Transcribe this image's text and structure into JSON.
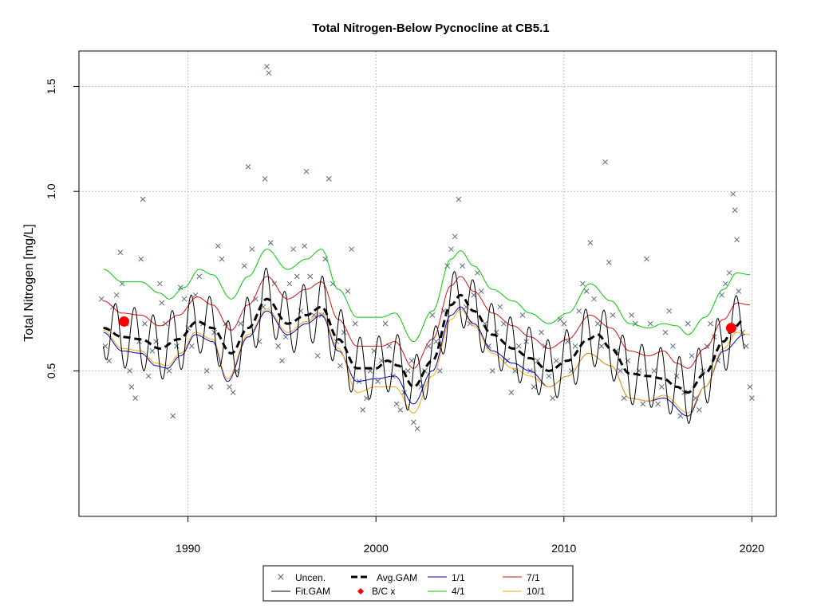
{
  "chart_data": {
    "type": "line",
    "title": "Total Nitrogen-Below Pycnocline at CB5.1",
    "xlabel": "",
    "ylabel": "Total Nitrogen [mg/L]",
    "xlim": [
      1984.2,
      2021.3
    ],
    "ylim": [
      0.285,
      1.72
    ],
    "y_scale": "log",
    "xticks": [
      1990,
      2000,
      2010,
      2020
    ],
    "yticks": [
      0.5,
      1.0,
      1.5
    ],
    "ytick_labels": [
      "0.5",
      "1.0",
      "1.5"
    ],
    "grid": true,
    "legend_position": "bottom-center",
    "legend": {
      "entries": [
        {
          "label": "Uncen.",
          "key": "uncen"
        },
        {
          "label": "Avg.GAM",
          "key": "avg"
        },
        {
          "label": "1/1",
          "key": "s1"
        },
        {
          "label": "7/1",
          "key": "s7"
        },
        {
          "label": "Fit.GAM",
          "key": "fit"
        },
        {
          "label": "B/C x",
          "key": "bc"
        },
        {
          "label": "4/1",
          "key": "s4"
        },
        {
          "label": "10/1",
          "key": "s10"
        }
      ]
    },
    "colors": {
      "uncen": "#5a6a80",
      "fit": "#000000",
      "avg": "#000000",
      "s1": "#0000cc",
      "s4": "#00cc00",
      "s7": "#dd1111",
      "s10": "#ffa500",
      "bc": "#ff0000",
      "grid": "#bfbfbf"
    },
    "avg_gam": {
      "x": [
        1985.5,
        1986.5,
        1987.5,
        1988.5,
        1989.5,
        1990.5,
        1991.3,
        1992.3,
        1993.2,
        1994.2,
        1995.3,
        1996.3,
        1997.1,
        1998.0,
        1999.0,
        2000.0,
        2000.6,
        2001.2,
        2002.0,
        2003.0,
        2004.0,
        2004.5,
        2005.2,
        2006.2,
        2007.3,
        2008.2,
        2009.2,
        2010.2,
        2011.3,
        2011.8,
        2012.5,
        2013.5,
        2014.5,
        2015.3,
        2016.0,
        2016.6,
        2017.5,
        2018.5,
        2019.0,
        2019.6
      ],
      "y": [
        0.59,
        0.57,
        0.565,
        0.545,
        0.565,
        0.605,
        0.59,
        0.535,
        0.59,
        0.66,
        0.6,
        0.62,
        0.64,
        0.565,
        0.505,
        0.505,
        0.52,
        0.51,
        0.47,
        0.52,
        0.645,
        0.67,
        0.63,
        0.575,
        0.545,
        0.525,
        0.5,
        0.52,
        0.565,
        0.575,
        0.545,
        0.495,
        0.49,
        0.485,
        0.47,
        0.46,
        0.495,
        0.56,
        0.59,
        0.61
      ]
    },
    "fit_gam": {
      "seasonal_amplitude": 0.12,
      "peak_month_fraction": 0.15
    },
    "seasonal_curves": [
      {
        "name": "1/1",
        "color": "#0000cc",
        "x": [
          1985.5,
          1986.5,
          1987.5,
          1988.3,
          1988.9,
          1989.6,
          1990.4,
          1991.3,
          1992.1,
          1993.2,
          1994.2,
          1995.3,
          1996.3,
          1997.1,
          1998.0,
          1999.0,
          2000.0,
          2001.0,
          2002.0,
          2003.0,
          2004.0,
          2004.5,
          2005.2,
          2006.2,
          2007.3,
          2008.2,
          2009.2,
          2010.2,
          2011.3,
          2012.5,
          2013.5,
          2014.5,
          2015.3,
          2016.6,
          2017.5,
          2018.5,
          2019.6
        ],
        "y": [
          0.58,
          0.54,
          0.535,
          0.51,
          0.505,
          0.53,
          0.575,
          0.56,
          0.48,
          0.57,
          0.63,
          0.575,
          0.6,
          0.62,
          0.54,
          0.48,
          0.485,
          0.49,
          0.44,
          0.5,
          0.62,
          0.64,
          0.6,
          0.54,
          0.515,
          0.5,
          0.47,
          0.49,
          0.535,
          0.51,
          0.45,
          0.445,
          0.45,
          0.42,
          0.47,
          0.54,
          0.575
        ]
      },
      {
        "name": "4/1",
        "color": "#00cc00",
        "x": [
          1985.5,
          1986.5,
          1987.5,
          1988.5,
          1989.0,
          1989.8,
          1990.6,
          1991.3,
          1992.3,
          1993.2,
          1994.2,
          1995.3,
          1996.3,
          1997.1,
          1998.0,
          1999.0,
          2000.3,
          2001.0,
          2002.0,
          2003.0,
          2004.0,
          2004.5,
          2005.2,
          2006.2,
          2007.3,
          2008.2,
          2009.2,
          2010.2,
          2011.4,
          2012.5,
          2013.5,
          2014.5,
          2015.3,
          2016.0,
          2016.6,
          2017.5,
          2018.5,
          2019.2,
          2019.9
        ],
        "y": [
          0.74,
          0.705,
          0.705,
          0.675,
          0.66,
          0.69,
          0.74,
          0.725,
          0.66,
          0.72,
          0.8,
          0.74,
          0.77,
          0.8,
          0.685,
          0.615,
          0.615,
          0.625,
          0.56,
          0.63,
          0.77,
          0.795,
          0.75,
          0.685,
          0.655,
          0.625,
          0.6,
          0.625,
          0.7,
          0.655,
          0.6,
          0.59,
          0.6,
          0.595,
          0.575,
          0.615,
          0.685,
          0.73,
          0.725
        ]
      },
      {
        "name": "7/1",
        "color": "#dd1111",
        "x": [
          1985.5,
          1986.5,
          1987.5,
          1988.5,
          1989.5,
          1990.5,
          1991.3,
          1992.3,
          1993.2,
          1994.2,
          1995.3,
          1996.3,
          1997.1,
          1998.0,
          1999.0,
          2000.3,
          2001.0,
          2002.0,
          2003.0,
          2004.0,
          2004.5,
          2005.2,
          2006.2,
          2007.3,
          2008.2,
          2009.2,
          2010.2,
          2011.4,
          2012.5,
          2013.5,
          2014.5,
          2015.3,
          2016.0,
          2016.6,
          2017.5,
          2018.5,
          2019.2,
          2019.9
        ],
        "y": [
          0.655,
          0.625,
          0.62,
          0.595,
          0.62,
          0.665,
          0.645,
          0.585,
          0.645,
          0.72,
          0.66,
          0.685,
          0.705,
          0.61,
          0.55,
          0.55,
          0.56,
          0.505,
          0.565,
          0.695,
          0.72,
          0.68,
          0.625,
          0.595,
          0.57,
          0.545,
          0.565,
          0.62,
          0.59,
          0.54,
          0.53,
          0.54,
          0.515,
          0.505,
          0.545,
          0.61,
          0.65,
          0.645
        ]
      },
      {
        "name": "10/1",
        "color": "#ffa500",
        "x": [
          1985.5,
          1986.5,
          1987.5,
          1988.3,
          1988.9,
          1989.6,
          1990.4,
          1991.3,
          1992.1,
          1993.2,
          1994.2,
          1995.3,
          1996.3,
          1997.1,
          1998.0,
          1999.0,
          2000.0,
          2001.0,
          2002.0,
          2003.0,
          2004.0,
          2004.5,
          2005.2,
          2006.2,
          2007.3,
          2008.2,
          2009.2,
          2010.2,
          2011.3,
          2012.5,
          2013.5,
          2014.5,
          2015.3,
          2016.6,
          2017.5,
          2018.5,
          2019.2,
          2019.9
        ],
        "y": [
          0.585,
          0.545,
          0.54,
          0.515,
          0.51,
          0.535,
          0.58,
          0.565,
          0.485,
          0.575,
          0.635,
          0.58,
          0.605,
          0.625,
          0.545,
          0.46,
          0.47,
          0.47,
          0.425,
          0.49,
          0.61,
          0.635,
          0.595,
          0.535,
          0.505,
          0.49,
          0.47,
          0.49,
          0.535,
          0.51,
          0.45,
          0.445,
          0.455,
          0.425,
          0.47,
          0.545,
          0.58,
          0.575
        ]
      }
    ],
    "bc_points": [
      {
        "x": 1986.6,
        "y": 0.605
      },
      {
        "x": 2018.9,
        "y": 0.59
      }
    ],
    "observations": [
      [
        1985.4,
        0.66
      ],
      [
        1985.6,
        0.55
      ],
      [
        1985.8,
        0.52
      ],
      [
        1986.0,
        0.64
      ],
      [
        1986.2,
        0.67
      ],
      [
        1986.4,
        0.79
      ],
      [
        1986.5,
        0.7
      ],
      [
        1986.7,
        0.6
      ],
      [
        1986.9,
        0.5
      ],
      [
        1987.0,
        0.47
      ],
      [
        1987.2,
        0.45
      ],
      [
        1987.4,
        0.56
      ],
      [
        1987.5,
        0.77
      ],
      [
        1987.6,
        0.97
      ],
      [
        1987.7,
        0.6
      ],
      [
        1987.9,
        0.49
      ],
      [
        1988.1,
        0.54
      ],
      [
        1988.3,
        0.56
      ],
      [
        1988.5,
        0.7
      ],
      [
        1988.6,
        0.65
      ],
      [
        1988.8,
        0.6
      ],
      [
        1989.0,
        0.5
      ],
      [
        1989.2,
        0.42
      ],
      [
        1989.4,
        0.55
      ],
      [
        1989.6,
        0.69
      ],
      [
        1989.8,
        0.66
      ],
      [
        1990.0,
        0.59
      ],
      [
        1990.2,
        0.55
      ],
      [
        1990.4,
        0.67
      ],
      [
        1990.6,
        0.72
      ],
      [
        1990.8,
        0.6
      ],
      [
        1991.0,
        0.5
      ],
      [
        1991.2,
        0.47
      ],
      [
        1991.4,
        0.58
      ],
      [
        1991.6,
        0.81
      ],
      [
        1991.8,
        0.77
      ],
      [
        1992.0,
        0.6
      ],
      [
        1992.2,
        0.47
      ],
      [
        1992.4,
        0.46
      ],
      [
        1992.6,
        0.5
      ],
      [
        1992.8,
        0.6
      ],
      [
        1993.0,
        0.75
      ],
      [
        1993.2,
        1.1
      ],
      [
        1993.4,
        0.8
      ],
      [
        1993.6,
        0.66
      ],
      [
        1993.8,
        0.56
      ],
      [
        1994.0,
        0.64
      ],
      [
        1994.1,
        1.05
      ],
      [
        1994.2,
        1.62
      ],
      [
        1994.3,
        1.58
      ],
      [
        1994.4,
        0.82
      ],
      [
        1994.6,
        0.7
      ],
      [
        1994.8,
        0.55
      ],
      [
        1995.0,
        0.52
      ],
      [
        1995.2,
        0.57
      ],
      [
        1995.4,
        0.7
      ],
      [
        1995.6,
        0.8
      ],
      [
        1995.8,
        0.72
      ],
      [
        1996.0,
        0.63
      ],
      [
        1996.2,
        0.81
      ],
      [
        1996.3,
        1.08
      ],
      [
        1996.5,
        0.72
      ],
      [
        1996.7,
        0.62
      ],
      [
        1996.9,
        0.53
      ],
      [
        1997.1,
        0.62
      ],
      [
        1997.3,
        0.77
      ],
      [
        1997.5,
        1.05
      ],
      [
        1997.7,
        0.7
      ],
      [
        1997.9,
        0.56
      ],
      [
        1998.1,
        0.51
      ],
      [
        1998.3,
        0.58
      ],
      [
        1998.5,
        0.68
      ],
      [
        1998.7,
        0.8
      ],
      [
        1998.9,
        0.6
      ],
      [
        1999.1,
        0.48
      ],
      [
        1999.3,
        0.43
      ],
      [
        1999.5,
        0.45
      ],
      [
        1999.7,
        0.5
      ],
      [
        1999.9,
        0.54
      ],
      [
        2000.1,
        0.48
      ],
      [
        2000.3,
        0.52
      ],
      [
        2000.5,
        0.6
      ],
      [
        2000.7,
        0.55
      ],
      [
        2000.9,
        0.49
      ],
      [
        2001.1,
        0.44
      ],
      [
        2001.3,
        0.43
      ],
      [
        2001.5,
        0.46
      ],
      [
        2001.7,
        0.5
      ],
      [
        2001.9,
        0.52
      ],
      [
        2002.0,
        0.41
      ],
      [
        2002.2,
        0.4
      ],
      [
        2002.4,
        0.47
      ],
      [
        2002.6,
        0.5
      ],
      [
        2002.8,
        0.55
      ],
      [
        2003.0,
        0.62
      ],
      [
        2003.2,
        0.56
      ],
      [
        2003.4,
        0.5
      ],
      [
        2003.6,
        0.63
      ],
      [
        2003.8,
        0.75
      ],
      [
        2004.0,
        0.8
      ],
      [
        2004.2,
        0.84
      ],
      [
        2004.4,
        0.97
      ],
      [
        2004.6,
        0.75
      ],
      [
        2004.8,
        0.64
      ],
      [
        2005.0,
        0.6
      ],
      [
        2005.2,
        0.67
      ],
      [
        2005.4,
        0.73
      ],
      [
        2005.6,
        0.68
      ],
      [
        2005.8,
        0.6
      ],
      [
        2006.0,
        0.55
      ],
      [
        2006.2,
        0.5
      ],
      [
        2006.4,
        0.58
      ],
      [
        2006.6,
        0.64
      ],
      [
        2006.8,
        0.6
      ],
      [
        2007.0,
        0.52
      ],
      [
        2007.2,
        0.46
      ],
      [
        2007.4,
        0.5
      ],
      [
        2007.6,
        0.55
      ],
      [
        2007.8,
        0.62
      ],
      [
        2008.0,
        0.56
      ],
      [
        2008.2,
        0.5
      ],
      [
        2008.4,
        0.47
      ],
      [
        2008.6,
        0.52
      ],
      [
        2008.8,
        0.58
      ],
      [
        2009.0,
        0.55
      ],
      [
        2009.2,
        0.49
      ],
      [
        2009.4,
        0.45
      ],
      [
        2009.6,
        0.52
      ],
      [
        2009.8,
        0.61
      ],
      [
        2010.0,
        0.6
      ],
      [
        2010.2,
        0.56
      ],
      [
        2010.4,
        0.5
      ],
      [
        2010.6,
        0.55
      ],
      [
        2010.8,
        0.63
      ],
      [
        2011.0,
        0.7
      ],
      [
        2011.2,
        0.68
      ],
      [
        2011.4,
        0.82
      ],
      [
        2011.6,
        0.66
      ],
      [
        2011.8,
        0.6
      ],
      [
        2012.0,
        0.55
      ],
      [
        2012.2,
        1.12
      ],
      [
        2012.4,
        0.76
      ],
      [
        2012.6,
        0.62
      ],
      [
        2012.8,
        0.54
      ],
      [
        2013.0,
        0.5
      ],
      [
        2013.2,
        0.45
      ],
      [
        2013.4,
        0.52
      ],
      [
        2013.6,
        0.62
      ],
      [
        2013.8,
        0.6
      ],
      [
        2014.0,
        0.5
      ],
      [
        2014.2,
        0.44
      ],
      [
        2014.4,
        0.77
      ],
      [
        2014.6,
        0.6
      ],
      [
        2014.8,
        0.5
      ],
      [
        2015.0,
        0.44
      ],
      [
        2015.2,
        0.47
      ],
      [
        2015.4,
        0.58
      ],
      [
        2015.6,
        0.63
      ],
      [
        2015.8,
        0.55
      ],
      [
        2016.0,
        0.49
      ],
      [
        2016.2,
        0.42
      ],
      [
        2016.4,
        0.46
      ],
      [
        2016.6,
        0.6
      ],
      [
        2016.8,
        0.53
      ],
      [
        2017.0,
        0.45
      ],
      [
        2017.2,
        0.43
      ],
      [
        2017.4,
        0.5
      ],
      [
        2017.6,
        0.55
      ],
      [
        2017.8,
        0.6
      ],
      [
        2018.0,
        0.57
      ],
      [
        2018.2,
        0.52
      ],
      [
        2018.4,
        0.67
      ],
      [
        2018.6,
        0.7
      ],
      [
        2018.8,
        0.73
      ],
      [
        2019.0,
        0.99
      ],
      [
        2019.1,
        0.93
      ],
      [
        2019.2,
        0.83
      ],
      [
        2019.3,
        0.68
      ],
      [
        2019.5,
        0.58
      ],
      [
        2019.7,
        0.55
      ],
      [
        2019.9,
        0.47
      ],
      [
        2020.0,
        0.45
      ]
    ]
  }
}
